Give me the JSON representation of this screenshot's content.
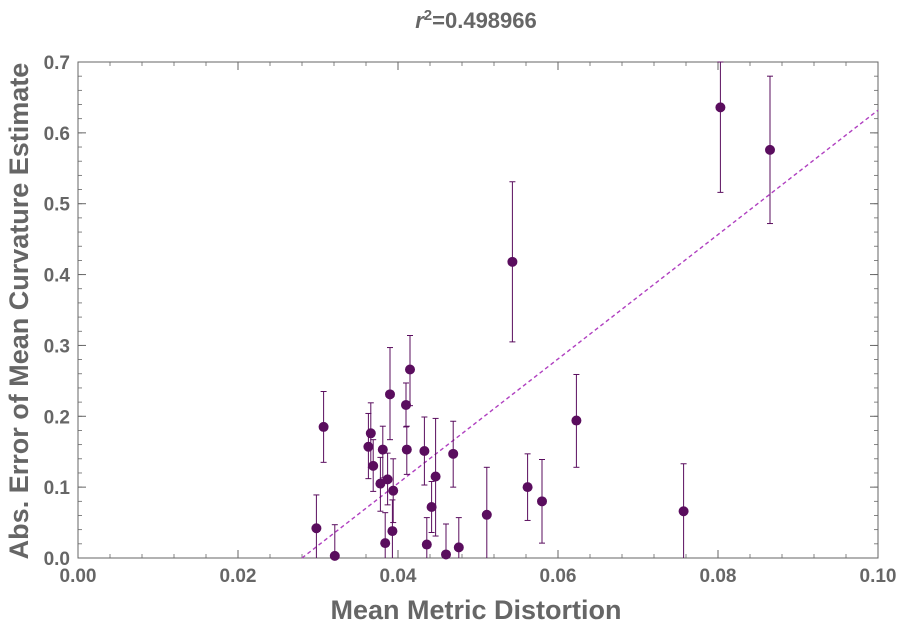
{
  "chart_data": {
    "type": "scatter",
    "title_var": "r",
    "title_sup": "2",
    "title_value": "=0.498966",
    "xlabel": "Mean Metric Distortion",
    "ylabel": "Abs. Error of Mean Curvature Estimate",
    "xlim": [
      0.0,
      0.1
    ],
    "ylim": [
      0.0,
      0.7
    ],
    "x_ticks": [
      0.0,
      0.02,
      0.04,
      0.06,
      0.08,
      0.1
    ],
    "x_tick_labels": [
      "0.00",
      "0.02",
      "0.04",
      "0.06",
      "0.08",
      "0.10"
    ],
    "y_ticks": [
      0.0,
      0.1,
      0.2,
      0.3,
      0.4,
      0.5,
      0.6,
      0.7
    ],
    "y_tick_labels": [
      "0.0",
      "0.1",
      "0.2",
      "0.3",
      "0.4",
      "0.5",
      "0.6",
      "0.7"
    ],
    "point_color": "#5a0d5e",
    "fit_color": "#b040c0",
    "axis_color": "#666666",
    "fit_line": {
      "x0": 0.028,
      "y0": 0.0,
      "x1": 0.1,
      "y1": 0.632
    },
    "points": [
      {
        "x": 0.0298,
        "y": 0.042,
        "lo": 0.0,
        "hi": 0.089
      },
      {
        "x": 0.0307,
        "y": 0.185,
        "lo": 0.135,
        "hi": 0.235
      },
      {
        "x": 0.0321,
        "y": 0.003,
        "lo": 0.0,
        "hi": 0.047
      },
      {
        "x": 0.0363,
        "y": 0.157,
        "lo": 0.112,
        "hi": 0.204
      },
      {
        "x": 0.0366,
        "y": 0.176,
        "lo": 0.128,
        "hi": 0.219
      },
      {
        "x": 0.0369,
        "y": 0.13,
        "lo": 0.094,
        "hi": 0.167
      },
      {
        "x": 0.0378,
        "y": 0.105,
        "lo": 0.066,
        "hi": 0.142
      },
      {
        "x": 0.0381,
        "y": 0.153,
        "lo": 0.113,
        "hi": 0.186
      },
      {
        "x": 0.0384,
        "y": 0.021,
        "lo": 0.0,
        "hi": 0.064
      },
      {
        "x": 0.0387,
        "y": 0.111,
        "lo": 0.075,
        "hi": 0.148
      },
      {
        "x": 0.039,
        "y": 0.231,
        "lo": 0.167,
        "hi": 0.297
      },
      {
        "x": 0.0394,
        "y": 0.095,
        "lo": 0.05,
        "hi": 0.14
      },
      {
        "x": 0.0393,
        "y": 0.038,
        "lo": 0.0,
        "hi": 0.082
      },
      {
        "x": 0.041,
        "y": 0.216,
        "lo": 0.185,
        "hi": 0.247
      },
      {
        "x": 0.0411,
        "y": 0.153,
        "lo": 0.118,
        "hi": 0.186
      },
      {
        "x": 0.0415,
        "y": 0.266,
        "lo": 0.215,
        "hi": 0.314
      },
      {
        "x": 0.0433,
        "y": 0.151,
        "lo": 0.103,
        "hi": 0.199
      },
      {
        "x": 0.0436,
        "y": 0.019,
        "lo": 0.0,
        "hi": 0.057
      },
      {
        "x": 0.0442,
        "y": 0.072,
        "lo": 0.036,
        "hi": 0.108
      },
      {
        "x": 0.0447,
        "y": 0.115,
        "lo": 0.031,
        "hi": 0.197
      },
      {
        "x": 0.046,
        "y": 0.005,
        "lo": 0.0,
        "hi": 0.048
      },
      {
        "x": 0.0469,
        "y": 0.147,
        "lo": 0.1,
        "hi": 0.193
      },
      {
        "x": 0.0476,
        "y": 0.015,
        "lo": 0.0,
        "hi": 0.057
      },
      {
        "x": 0.0511,
        "y": 0.061,
        "lo": 0.0,
        "hi": 0.128
      },
      {
        "x": 0.0543,
        "y": 0.418,
        "lo": 0.305,
        "hi": 0.531
      },
      {
        "x": 0.0562,
        "y": 0.1,
        "lo": 0.053,
        "hi": 0.147
      },
      {
        "x": 0.058,
        "y": 0.08,
        "lo": 0.021,
        "hi": 0.139
      },
      {
        "x": 0.0623,
        "y": 0.194,
        "lo": 0.128,
        "hi": 0.259
      },
      {
        "x": 0.0757,
        "y": 0.066,
        "lo": 0.0,
        "hi": 0.133
      },
      {
        "x": 0.0803,
        "y": 0.636,
        "lo": 0.516,
        "hi": 0.7
      },
      {
        "x": 0.0865,
        "y": 0.576,
        "lo": 0.472,
        "hi": 0.68
      }
    ]
  }
}
